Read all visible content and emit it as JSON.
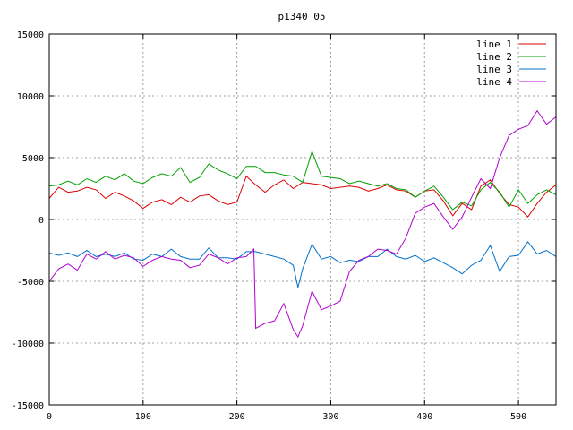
{
  "chart_data": {
    "type": "line",
    "title": "p1340_05",
    "xlabel": "",
    "ylabel": "",
    "xlim": [
      0,
      540
    ],
    "ylim": [
      -15000,
      15000
    ],
    "xticks": [
      0,
      100,
      200,
      300,
      400,
      500
    ],
    "yticks": [
      -15000,
      -10000,
      -5000,
      0,
      5000,
      10000,
      15000
    ],
    "grid": true,
    "legend": "top-right",
    "series": [
      {
        "name": "line 1",
        "color": "#dd0000",
        "x": [
          0,
          10,
          20,
          30,
          40,
          50,
          60,
          70,
          80,
          90,
          100,
          110,
          120,
          130,
          140,
          150,
          160,
          170,
          180,
          190,
          200,
          210,
          220,
          230,
          240,
          250,
          260,
          270,
          280,
          290,
          300,
          310,
          320,
          330,
          340,
          350,
          360,
          370,
          380,
          390,
          400,
          410,
          420,
          430,
          440,
          450,
          460,
          470,
          480,
          490,
          500,
          510,
          520,
          530,
          540
        ],
        "y": [
          1700,
          2600,
          2200,
          2300,
          2600,
          2400,
          1700,
          2200,
          1900,
          1500,
          900,
          1400,
          1600,
          1200,
          1800,
          1400,
          1900,
          2000,
          1500,
          1200,
          1400,
          3500,
          2800,
          2200,
          2800,
          3200,
          2500,
          3000,
          2900,
          2800,
          2500,
          2600,
          2700,
          2600,
          2300,
          2500,
          2800,
          2400,
          2300,
          1800,
          2300,
          2400,
          1500,
          300,
          1300,
          800,
          2700,
          3200,
          2100,
          1200,
          1000,
          200,
          1300,
          2200,
          2800
        ]
      },
      {
        "name": "line 2",
        "color": "#00a000",
        "x": [
          0,
          10,
          20,
          30,
          40,
          50,
          60,
          70,
          80,
          90,
          100,
          110,
          120,
          130,
          140,
          150,
          160,
          170,
          180,
          190,
          200,
          210,
          220,
          230,
          240,
          250,
          260,
          270,
          280,
          290,
          300,
          310,
          320,
          330,
          340,
          350,
          360,
          370,
          380,
          390,
          400,
          410,
          420,
          430,
          440,
          450,
          460,
          470,
          480,
          490,
          500,
          510,
          520,
          530,
          540
        ],
        "y": [
          2700,
          2800,
          3100,
          2800,
          3300,
          3000,
          3500,
          3200,
          3700,
          3100,
          2900,
          3400,
          3700,
          3500,
          4200,
          3000,
          3400,
          4500,
          4000,
          3700,
          3300,
          4300,
          4300,
          3800,
          3800,
          3600,
          3500,
          3000,
          5500,
          3500,
          3400,
          3300,
          2900,
          3100,
          2900,
          2700,
          2900,
          2500,
          2400,
          1800,
          2300,
          2700,
          1800,
          800,
          1400,
          1100,
          2400,
          3000,
          2200,
          1000,
          2400,
          1300,
          2000,
          2400,
          2000
        ]
      },
      {
        "name": "line 3",
        "color": "#0070cc",
        "x": [
          0,
          10,
          20,
          30,
          40,
          50,
          60,
          70,
          80,
          90,
          100,
          110,
          120,
          130,
          140,
          150,
          160,
          170,
          180,
          190,
          200,
          210,
          220,
          230,
          240,
          250,
          260,
          265,
          270,
          280,
          290,
          300,
          310,
          320,
          330,
          340,
          350,
          360,
          370,
          380,
          390,
          400,
          410,
          420,
          430,
          440,
          450,
          460,
          470,
          480,
          490,
          500,
          510,
          520,
          530,
          540
        ],
        "y": [
          -2700,
          -2900,
          -2700,
          -3000,
          -2500,
          -3000,
          -2800,
          -3000,
          -2700,
          -3200,
          -3300,
          -2800,
          -3000,
          -2400,
          -3000,
          -3200,
          -3200,
          -2300,
          -3100,
          -3100,
          -3200,
          -2600,
          -2600,
          -2800,
          -3000,
          -3200,
          -3700,
          -5500,
          -4000,
          -2000,
          -3200,
          -3000,
          -3500,
          -3300,
          -3400,
          -3000,
          -3000,
          -2400,
          -3000,
          -3200,
          -2900,
          -3400,
          -3100,
          -3500,
          -3900,
          -4400,
          -3700,
          -3300,
          -2100,
          -4200,
          -3000,
          -2900,
          -1800,
          -2800,
          -2500,
          -3000
        ]
      },
      {
        "name": "line 4",
        "color": "#b000d0",
        "x": [
          0,
          10,
          20,
          30,
          40,
          50,
          60,
          70,
          80,
          90,
          100,
          110,
          120,
          130,
          140,
          150,
          160,
          170,
          180,
          190,
          200,
          210,
          218,
          220,
          230,
          240,
          250,
          260,
          265,
          270,
          280,
          290,
          300,
          310,
          320,
          330,
          340,
          350,
          360,
          370,
          380,
          390,
          400,
          410,
          420,
          430,
          440,
          450,
          460,
          470,
          480,
          490,
          500,
          510,
          520,
          530,
          540
        ],
        "y": [
          -5000,
          -4000,
          -3600,
          -4100,
          -2800,
          -3200,
          -2600,
          -3200,
          -2900,
          -3100,
          -3800,
          -3300,
          -3000,
          -3200,
          -3300,
          -3900,
          -3700,
          -2800,
          -3100,
          -3600,
          -3100,
          -3000,
          -2400,
          -8800,
          -8400,
          -8200,
          -6800,
          -8900,
          -9500,
          -8600,
          -5800,
          -7300,
          -7000,
          -6600,
          -4200,
          -3300,
          -3000,
          -2400,
          -2500,
          -2800,
          -1500,
          500,
          1000,
          1300,
          200,
          -800,
          200,
          1800,
          3300,
          2500,
          5000,
          6800,
          7300,
          7600,
          8800,
          7700,
          8300
        ]
      }
    ]
  }
}
